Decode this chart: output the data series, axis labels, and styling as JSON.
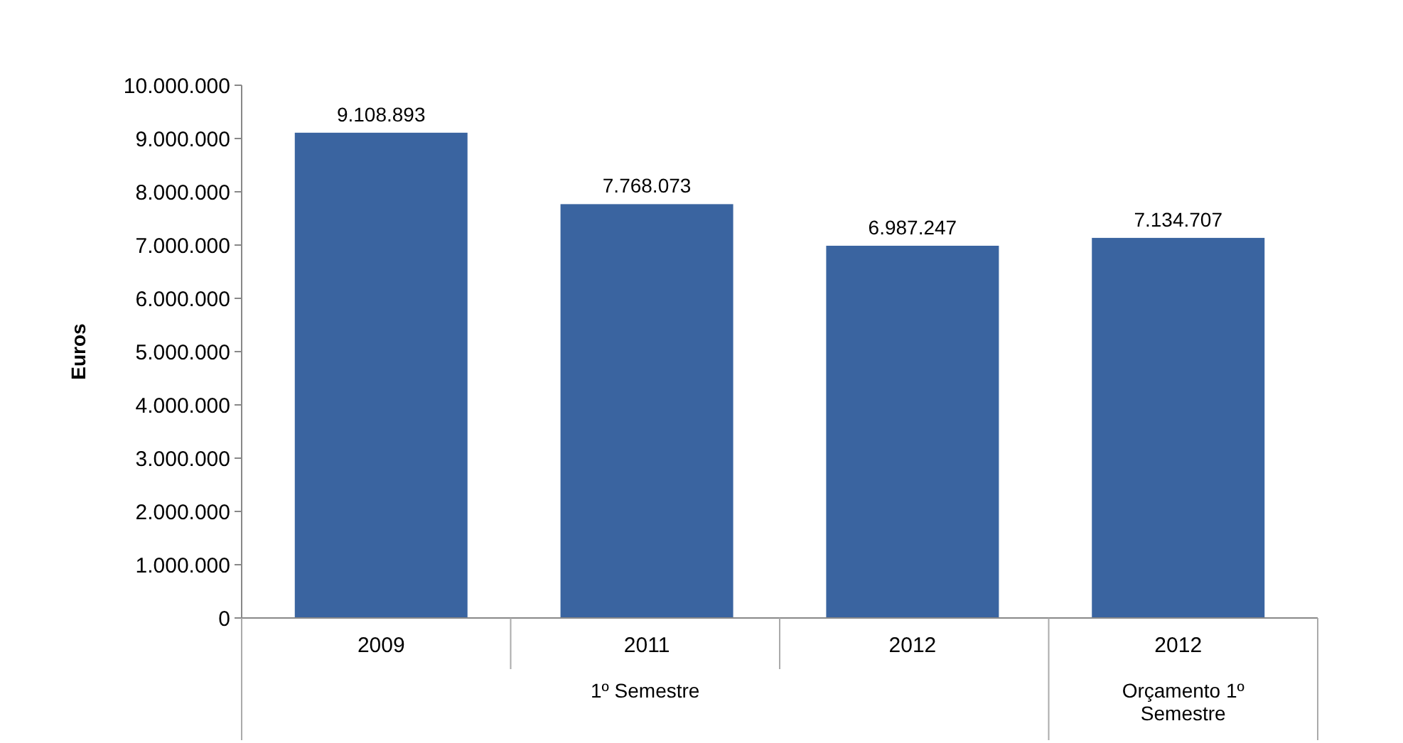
{
  "chart_data": {
    "type": "bar",
    "ylabel": "Euros",
    "categories": [
      "2009",
      "2011",
      "2012",
      "2012"
    ],
    "values": [
      9108893,
      7768073,
      6987247,
      7134707
    ],
    "color": "#3a64a0",
    "value_labels": [
      "9.108.893",
      "7.768.073",
      "6.987.247",
      "7.134.707"
    ],
    "ylim": [
      0,
      10000000
    ],
    "yticks": [
      0,
      {
        "value": 1000000,
        "label": "1.000.000"
      },
      {
        "value": 2000000,
        "label": "2.000.000"
      },
      {
        "value": 3000000,
        "label": "3.000.000"
      },
      {
        "value": 4000000,
        "label": "4.000.000"
      },
      {
        "value": 5000000,
        "label": "5.000.000"
      },
      {
        "value": 6000000,
        "label": "6.000.000"
      },
      {
        "value": 7000000,
        "label": "7.000.000"
      },
      {
        "value": 8000000,
        "label": "8.000.000"
      },
      {
        "value": 9000000,
        "label": "9.000.000"
      },
      {
        "value": 10000000,
        "label": "10.000.000"
      }
    ],
    "grid": false,
    "annotations": [
      "1º Semestre",
      "Orçamento 1º Semestre"
    ]
  }
}
